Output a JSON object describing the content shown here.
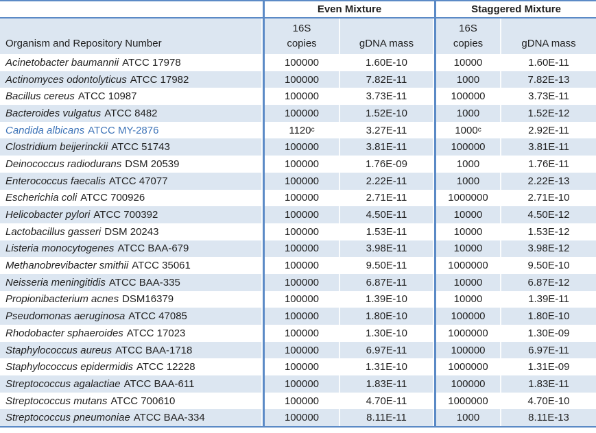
{
  "colors": {
    "table_line_blue": "#5b8ac6",
    "alt_row_blue": "#dce6f1",
    "text_color": "#1f1f1f",
    "highlight_row_text_blue": "#3e74b8"
  },
  "table": {
    "group_headers": {
      "even": "Even Mixture",
      "staggered": "Staggered Mixture"
    },
    "headers": {
      "organism": "Organism and Repository Number",
      "s16": "16S",
      "copies": "copies",
      "gdna": "gDNA mass"
    },
    "rows": [
      {
        "name_italic": "Acinetobacter baumannii",
        "name_rest": "ATCC 17978",
        "even_copies": "100000",
        "even_sup": "",
        "even_mass": "1.60E-10",
        "stag_copies": "10000",
        "stag_sup": "",
        "stag_mass": "1.60E-11",
        "highlight": false
      },
      {
        "name_italic": "Actinomyces odontolyticus",
        "name_rest": "ATCC 17982",
        "even_copies": "100000",
        "even_sup": "",
        "even_mass": "7.82E-11",
        "stag_copies": "1000",
        "stag_sup": "",
        "stag_mass": "7.82E-13",
        "highlight": false
      },
      {
        "name_italic": "Bacillus cereus",
        "name_rest": "ATCC 10987",
        "even_copies": "100000",
        "even_sup": "",
        "even_mass": "3.73E-11",
        "stag_copies": "100000",
        "stag_sup": "",
        "stag_mass": "3.73E-11",
        "highlight": false
      },
      {
        "name_italic": "Bacteroides vulgatus",
        "name_rest": "ATCC 8482",
        "even_copies": "100000",
        "even_sup": "",
        "even_mass": "1.52E-10",
        "stag_copies": "1000",
        "stag_sup": "",
        "stag_mass": "1.52E-12",
        "highlight": false
      },
      {
        "name_italic": "Candida albicans",
        "name_rest": "ATCC MY-2876",
        "even_copies": "1120",
        "even_sup": "c",
        "even_mass": "3.27E-11",
        "stag_copies": "1000",
        "stag_sup": "c",
        "stag_mass": "2.92E-11",
        "highlight": true
      },
      {
        "name_italic": "Clostridium beijerinckii",
        "name_rest": "ATCC 51743",
        "even_copies": "100000",
        "even_sup": "",
        "even_mass": "3.81E-11",
        "stag_copies": "100000",
        "stag_sup": "",
        "stag_mass": "3.81E-11",
        "highlight": false
      },
      {
        "name_italic": "Deinococcus radiodurans",
        "name_rest": "DSM 20539",
        "even_copies": "100000",
        "even_sup": "",
        "even_mass": "1.76E-09",
        "stag_copies": "1000",
        "stag_sup": "",
        "stag_mass": "1.76E-11",
        "highlight": false
      },
      {
        "name_italic": "Enterococcus faecalis",
        "name_rest": "ATCC 47077",
        "even_copies": "100000",
        "even_sup": "",
        "even_mass": "2.22E-11",
        "stag_copies": "1000",
        "stag_sup": "",
        "stag_mass": "2.22E-13",
        "highlight": false
      },
      {
        "name_italic": "Escherichia coli",
        "name_rest": "ATCC 700926",
        "even_copies": "100000",
        "even_sup": "",
        "even_mass": "2.71E-11",
        "stag_copies": "1000000",
        "stag_sup": "",
        "stag_mass": "2.71E-10",
        "highlight": false
      },
      {
        "name_italic": "Helicobacter pylori",
        "name_rest": "ATCC 700392",
        "even_copies": "100000",
        "even_sup": "",
        "even_mass": "4.50E-11",
        "stag_copies": "10000",
        "stag_sup": "",
        "stag_mass": "4.50E-12",
        "highlight": false
      },
      {
        "name_italic": "Lactobacillus gasseri",
        "name_rest": "DSM 20243",
        "even_copies": "100000",
        "even_sup": "",
        "even_mass": "1.53E-11",
        "stag_copies": "10000",
        "stag_sup": "",
        "stag_mass": "1.53E-12",
        "highlight": false
      },
      {
        "name_italic": "Listeria monocytogenes",
        "name_rest": "ATCC BAA-679",
        "even_copies": "100000",
        "even_sup": "",
        "even_mass": "3.98E-11",
        "stag_copies": "10000",
        "stag_sup": "",
        "stag_mass": "3.98E-12",
        "highlight": false
      },
      {
        "name_italic": "Methanobrevibacter smithii",
        "name_rest": "ATCC 35061",
        "even_copies": "100000",
        "even_sup": "",
        "even_mass": "9.50E-11",
        "stag_copies": "1000000",
        "stag_sup": "",
        "stag_mass": "9.50E-10",
        "highlight": false
      },
      {
        "name_italic": "Neisseria meningitidis",
        "name_rest": "ATCC BAA-335",
        "even_copies": "100000",
        "even_sup": "",
        "even_mass": "6.87E-11",
        "stag_copies": "10000",
        "stag_sup": "",
        "stag_mass": "6.87E-12",
        "highlight": false
      },
      {
        "name_italic": "Propionibacterium acnes",
        "name_rest": "DSM16379",
        "even_copies": "100000",
        "even_sup": "",
        "even_mass": "1.39E-10",
        "stag_copies": "10000",
        "stag_sup": "",
        "stag_mass": "1.39E-11",
        "highlight": false
      },
      {
        "name_italic": "Pseudomonas aeruginosa",
        "name_rest": "ATCC 47085",
        "even_copies": "100000",
        "even_sup": "",
        "even_mass": "1.80E-10",
        "stag_copies": "100000",
        "stag_sup": "",
        "stag_mass": "1.80E-10",
        "highlight": false
      },
      {
        "name_italic": "Rhodobacter sphaeroides",
        "name_rest": "ATCC 17023",
        "even_copies": "100000",
        "even_sup": "",
        "even_mass": "1.30E-10",
        "stag_copies": "1000000",
        "stag_sup": "",
        "stag_mass": "1.30E-09",
        "highlight": false
      },
      {
        "name_italic": "Staphylococcus aureus",
        "name_rest": "ATCC BAA-1718",
        "even_copies": "100000",
        "even_sup": "",
        "even_mass": "6.97E-11",
        "stag_copies": "100000",
        "stag_sup": "",
        "stag_mass": "6.97E-11",
        "highlight": false
      },
      {
        "name_italic": "Staphylococcus epidermidis",
        "name_rest": "ATCC 12228",
        "even_copies": "100000",
        "even_sup": "",
        "even_mass": "1.31E-10",
        "stag_copies": "1000000",
        "stag_sup": "",
        "stag_mass": "1.31E-09",
        "highlight": false
      },
      {
        "name_italic": "Streptococcus agalactiae",
        "name_rest": "ATCC BAA-611",
        "even_copies": "100000",
        "even_sup": "",
        "even_mass": "1.83E-11",
        "stag_copies": "100000",
        "stag_sup": "",
        "stag_mass": "1.83E-11",
        "highlight": false
      },
      {
        "name_italic": "Streptococcus mutans",
        "name_rest": "ATCC 700610",
        "even_copies": "100000",
        "even_sup": "",
        "even_mass": "4.70E-11",
        "stag_copies": "1000000",
        "stag_sup": "",
        "stag_mass": "4.70E-10",
        "highlight": false
      },
      {
        "name_italic": "Streptococcus pneumoniae",
        "name_rest": "ATCC BAA-334",
        "even_copies": "100000",
        "even_sup": "",
        "even_mass": "8.11E-11",
        "stag_copies": "1000",
        "stag_sup": "",
        "stag_mass": "8.11E-13",
        "highlight": false
      }
    ]
  }
}
